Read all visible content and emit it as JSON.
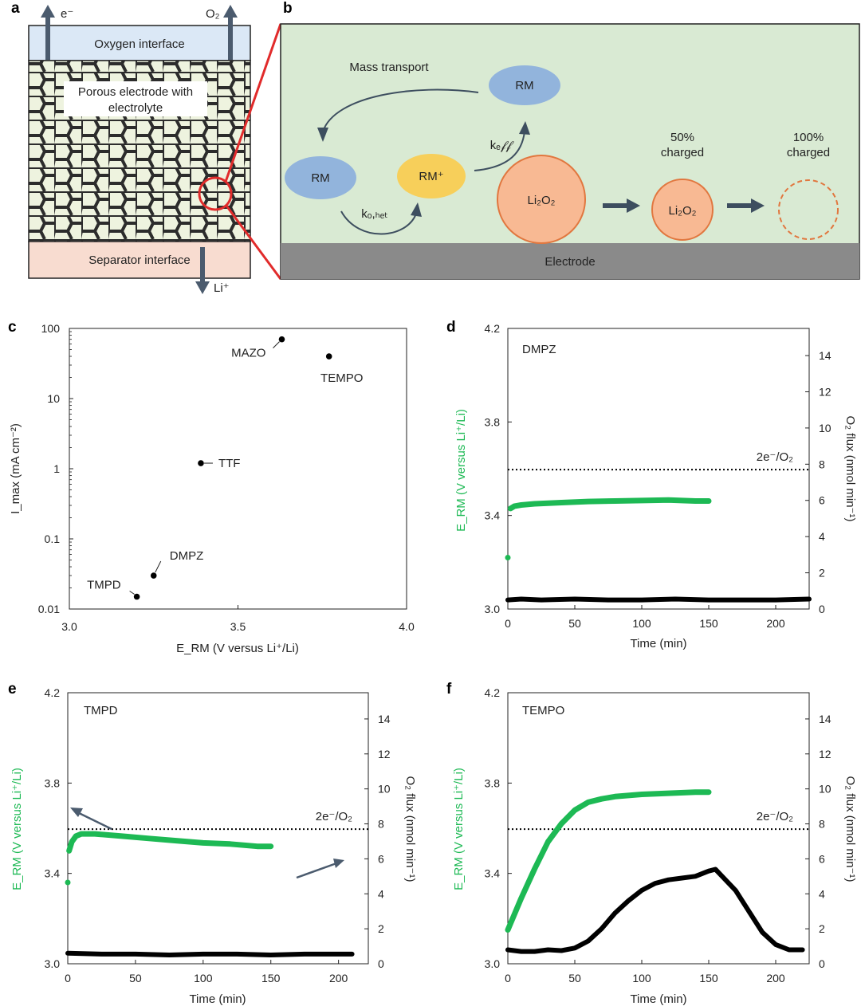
{
  "panel_letters": {
    "a": "a",
    "b": "b",
    "c": "c",
    "d": "d",
    "e": "e",
    "f": "f"
  },
  "schematic_a": {
    "electron_label": "e⁻",
    "oxygen_label": "O₂",
    "oxygen_interface": "Oxygen interface",
    "porous_line1": "Porous electrode with",
    "porous_line2": "electrolyte",
    "separator_interface": "Separator interface",
    "lithium_label": "Li⁺"
  },
  "schematic_b": {
    "mass_transport": "Mass transport",
    "rm": "RM",
    "rm_plus": "RM⁺",
    "k_o_het": "kₒ,ₕₑₜ",
    "k_eff": "kₑ𝒻𝒻",
    "li2o2": "Li₂O₂",
    "charged_50_line1": "50%",
    "charged_50_line2": "charged",
    "charged_100_line1": "100%",
    "charged_100_line2": "charged",
    "electrode": "Electrode",
    "colors": {
      "green_bg": "#d9ead3",
      "rm_blue": "#92b4dc",
      "rm_plus_yellow": "#f7cf5a",
      "li2o2_orange": "#f8b993",
      "li2o2_edge": "#e1773f",
      "electrode_gray": "#8a8a8a"
    }
  },
  "chart_data": [
    {
      "id": "c",
      "type": "scatter",
      "xlabel": "E_RM (V versus Li⁺/Li)",
      "ylabel": "I_max (mA cm⁻²)",
      "xlim": [
        3.0,
        4.0
      ],
      "ylim": [
        0.01,
        100
      ],
      "yscale": "log",
      "xticks": [
        "3.0",
        "3.5",
        "4.0"
      ],
      "yticks": [
        "0.01",
        "0.1",
        "1",
        "10",
        "100"
      ],
      "points": [
        {
          "name": "MAZO",
          "x": 3.63,
          "y": 70
        },
        {
          "name": "TEMPO",
          "x": 3.77,
          "y": 40
        },
        {
          "name": "TTF",
          "x": 3.39,
          "y": 1.2
        },
        {
          "name": "DMPZ",
          "x": 3.25,
          "y": 0.03
        },
        {
          "name": "TMPD",
          "x": 3.2,
          "y": 0.015
        }
      ]
    },
    {
      "id": "d",
      "type": "line",
      "title": "DMPZ",
      "xlabel": "Time (min)",
      "ylabel_left": "E_RM (V versus Li⁺/Li)",
      "ylabel_right": "O₂ flux (nmol min⁻¹)",
      "xlim": [
        0,
        225
      ],
      "ylim_left": [
        3.0,
        4.2
      ],
      "ylim_right": [
        0,
        15.5
      ],
      "xticks": [
        "0",
        "50",
        "100",
        "150",
        "200"
      ],
      "yticks_left": [
        "3.0",
        "3.4",
        "3.8",
        "4.2"
      ],
      "yticks_right": [
        "0",
        "2",
        "4",
        "6",
        "8",
        "10",
        "12",
        "14"
      ],
      "reference": {
        "label": "2e⁻/O₂",
        "y_right": 7.7
      },
      "series": [
        {
          "name": "E_RM",
          "color": "#1db954",
          "axis": "left",
          "x": [
            0,
            2,
            5,
            10,
            20,
            40,
            60,
            80,
            100,
            120,
            140,
            150
          ],
          "y": [
            3.22,
            3.43,
            3.44,
            3.445,
            3.45,
            3.455,
            3.46,
            3.462,
            3.464,
            3.466,
            3.462,
            3.462
          ]
        },
        {
          "name": "O2 flux",
          "color": "#000000",
          "axis": "right",
          "x": [
            0,
            10,
            25,
            50,
            75,
            100,
            125,
            150,
            175,
            200,
            225
          ],
          "y": [
            0.5,
            0.55,
            0.5,
            0.55,
            0.5,
            0.5,
            0.55,
            0.5,
            0.5,
            0.5,
            0.55
          ]
        }
      ]
    },
    {
      "id": "e",
      "type": "line",
      "title": "TMPD",
      "xlabel": "Time (min)",
      "ylabel_left": "E_RM (V versus Li⁺/Li)",
      "ylabel_right": "O₂ flux (nmol min⁻¹)",
      "xlim": [
        0,
        222
      ],
      "ylim_left": [
        3.0,
        4.2
      ],
      "ylim_right": [
        0,
        15.5
      ],
      "xticks": [
        "0",
        "50",
        "100",
        "150",
        "200"
      ],
      "yticks_left": [
        "3.0",
        "3.4",
        "3.8",
        "4.2"
      ],
      "yticks_right": [
        "0",
        "2",
        "4",
        "6",
        "8",
        "10",
        "12",
        "14"
      ],
      "reference": {
        "label": "2e⁻/O₂",
        "y_right": 7.7
      },
      "series": [
        {
          "name": "E_RM",
          "color": "#1db954",
          "axis": "left",
          "x": [
            0,
            1,
            3,
            6,
            10,
            20,
            40,
            60,
            80,
            100,
            120,
            140,
            150
          ],
          "y": [
            3.36,
            3.5,
            3.54,
            3.565,
            3.575,
            3.575,
            3.565,
            3.555,
            3.545,
            3.535,
            3.53,
            3.52,
            3.52
          ]
        },
        {
          "name": "O2 flux",
          "color": "#000000",
          "axis": "right",
          "x": [
            0,
            25,
            50,
            75,
            100,
            125,
            150,
            175,
            200,
            210
          ],
          "y": [
            0.6,
            0.55,
            0.55,
            0.5,
            0.55,
            0.55,
            0.5,
            0.55,
            0.55,
            0.55
          ]
        }
      ]
    },
    {
      "id": "f",
      "type": "line",
      "title": "TEMPO",
      "xlabel": "Time (min)",
      "ylabel_left": "E_RM (V versus Li⁺/Li)",
      "ylabel_right": "O₂ flux (nmol min⁻¹)",
      "xlim": [
        0,
        225
      ],
      "ylim_left": [
        3.0,
        4.2
      ],
      "ylim_right": [
        0,
        15.5
      ],
      "xticks": [
        "0",
        "50",
        "100",
        "150",
        "200"
      ],
      "yticks_left": [
        "3.0",
        "3.4",
        "3.8",
        "4.2"
      ],
      "yticks_right": [
        "0",
        "2",
        "4",
        "6",
        "8",
        "10",
        "12",
        "14"
      ],
      "reference": {
        "label": "2e⁻/O₂",
        "y_right": 7.7
      },
      "series": [
        {
          "name": "E_RM",
          "color": "#1db954",
          "axis": "left",
          "x": [
            0,
            10,
            20,
            30,
            40,
            50,
            60,
            70,
            80,
            100,
            120,
            140,
            150
          ],
          "y": [
            3.15,
            3.29,
            3.42,
            3.54,
            3.62,
            3.68,
            3.715,
            3.73,
            3.74,
            3.75,
            3.755,
            3.76,
            3.76
          ]
        },
        {
          "name": "O2 flux",
          "color": "#000000",
          "axis": "right",
          "x": [
            0,
            10,
            20,
            30,
            40,
            50,
            60,
            70,
            80,
            90,
            100,
            110,
            120,
            130,
            140,
            150,
            155,
            160,
            170,
            180,
            190,
            200,
            210,
            220
          ],
          "y": [
            0.8,
            0.7,
            0.7,
            0.8,
            0.75,
            0.9,
            1.3,
            2.0,
            2.9,
            3.6,
            4.2,
            4.6,
            4.8,
            4.9,
            5.0,
            5.3,
            5.4,
            5.0,
            4.2,
            3.0,
            1.8,
            1.1,
            0.8,
            0.8
          ]
        }
      ]
    }
  ]
}
